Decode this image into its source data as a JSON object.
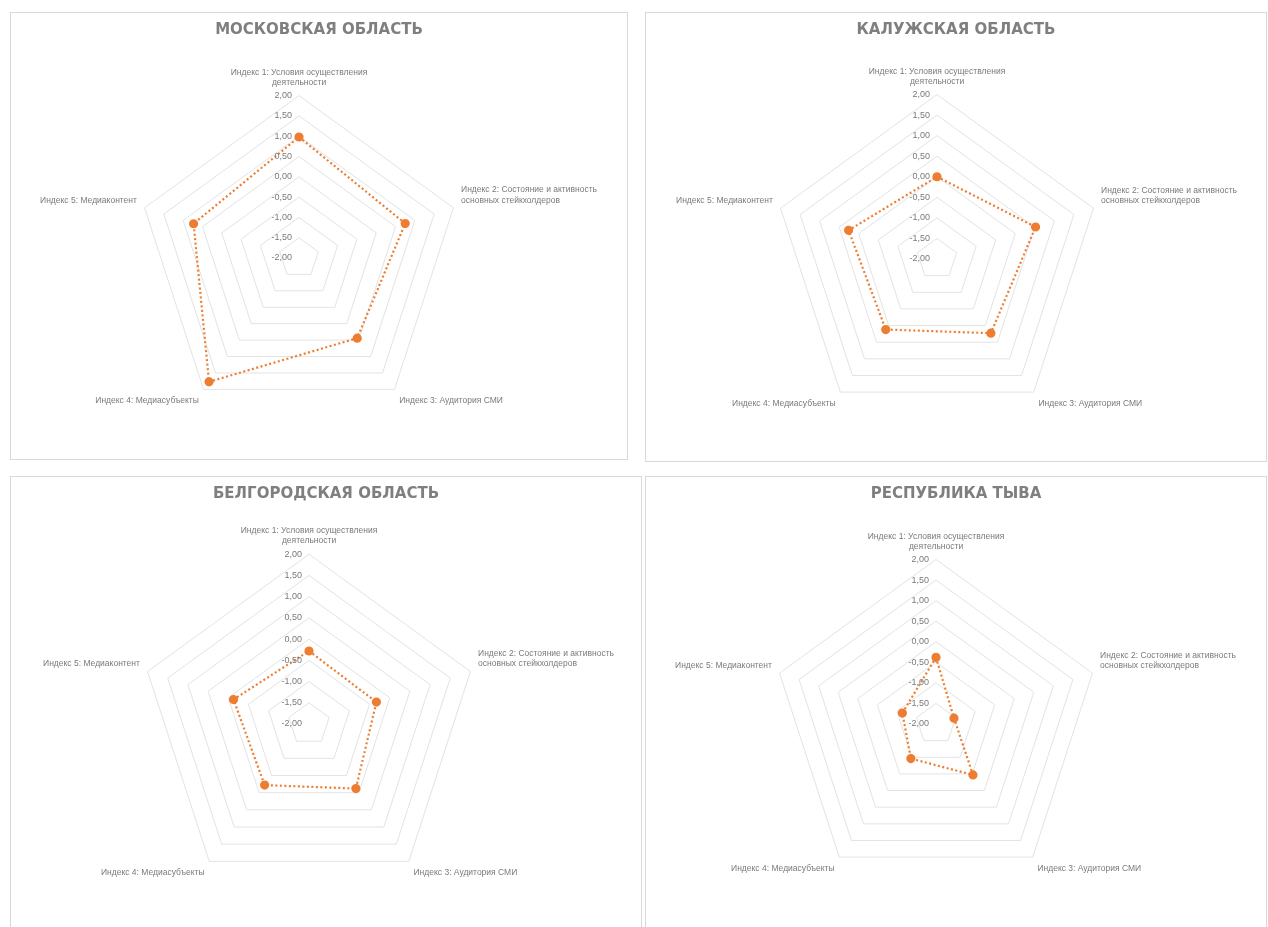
{
  "chart_data": [
    {
      "type": "radar",
      "title": "МОСКОВСКАЯ ОБЛАСТЬ",
      "categories": [
        "Индекс 1: Условия осуществления деятельности",
        "Индекс 2: Состояние и активность основных стейкхолдеров",
        "Индекс 3: Аудитория СМИ",
        "Индекс 4: Медиасубъекты",
        "Индекс 5: Медиаконтент"
      ],
      "series": [
        {
          "color": "#ed7d31",
          "values": [
            0.98,
            0.75,
            0.44,
            1.77,
            0.73
          ]
        }
      ],
      "ylim": [
        -2,
        2
      ],
      "yticks": [
        {
          "value": -2,
          "label": "-2,00"
        },
        {
          "value": -1.5,
          "label": "-1,50"
        },
        {
          "value": -1,
          "label": "-1,00"
        },
        {
          "value": -0.5,
          "label": "-0,50"
        },
        {
          "value": 0,
          "label": "0,00"
        },
        {
          "value": 0.5,
          "label": "0,50"
        },
        {
          "value": 1,
          "label": "1,00"
        },
        {
          "value": 1.5,
          "label": "1,50"
        },
        {
          "value": 2,
          "label": "2,00"
        }
      ],
      "grid": true,
      "legend": false,
      "marker": "circle",
      "line_style": "dotted"
    },
    {
      "type": "radar",
      "title": "КАЛУЖСКАЯ ОБЛАСТЬ",
      "categories": [
        "Индекс 1: Условия осуществления деятельности",
        "Индекс 2: Состояние и активность основных стейкхолдеров",
        "Индекс 3: Аудитория СМИ",
        "Индекс 4: Медиасубъекты",
        "Индекс 5: Медиаконтент"
      ],
      "series": [
        {
          "color": "#ed7d31",
          "values": [
            0.0,
            0.52,
            0.23,
            0.12,
            0.26
          ]
        }
      ],
      "ylim": [
        -2,
        2
      ],
      "yticks": [
        {
          "value": -2,
          "label": "-2,00"
        },
        {
          "value": -1.5,
          "label": "-1,50"
        },
        {
          "value": -1,
          "label": "-1,00"
        },
        {
          "value": -0.5,
          "label": "-0,50"
        },
        {
          "value": 0,
          "label": "0,00"
        },
        {
          "value": 0.5,
          "label": "0,50"
        },
        {
          "value": 1,
          "label": "1,00"
        },
        {
          "value": 1.5,
          "label": "1,50"
        },
        {
          "value": 2,
          "label": "2,00"
        }
      ],
      "grid": true,
      "legend": false,
      "marker": "circle",
      "line_style": "dotted"
    },
    {
      "type": "radar",
      "title": "БЕЛГОРОДСКАЯ ОБЛАСТЬ",
      "categories": [
        "Индекс 1: Условия осуществления деятельности",
        "Индекс 2: Состояние и активность основных стейкхолдеров",
        "Индекс 3: Аудитория СМИ",
        "Индекс 4: Медиасубъекты",
        "Индекс 5: Медиаконтент"
      ],
      "series": [
        {
          "color": "#ed7d31",
          "values": [
            -0.28,
            -0.33,
            -0.12,
            -0.22,
            -0.13
          ]
        }
      ],
      "ylim": [
        -2,
        2
      ],
      "yticks": [
        {
          "value": -2,
          "label": "-2,00"
        },
        {
          "value": -1.5,
          "label": "-1,50"
        },
        {
          "value": -1,
          "label": "-1,00"
        },
        {
          "value": -0.5,
          "label": "-0,50"
        },
        {
          "value": 0,
          "label": "0,00"
        },
        {
          "value": 0.5,
          "label": "0,50"
        },
        {
          "value": 1,
          "label": "1,00"
        },
        {
          "value": 1.5,
          "label": "1,50"
        },
        {
          "value": 2,
          "label": "2,00"
        }
      ],
      "grid": true,
      "legend": false,
      "marker": "circle",
      "line_style": "dotted"
    },
    {
      "type": "radar",
      "title": "РЕСПУБЛИКА ТЫВА",
      "categories": [
        "Индекс 1: Условия осуществления деятельности",
        "Индекс 2: Состояние и активность основных стейкхолдеров",
        "Индекс 3: Аудитория СМИ",
        "Индекс 4: Медиасубъекты",
        "Индекс 5: Медиаконтент"
      ],
      "series": [
        {
          "color": "#ed7d31",
          "values": [
            -0.38,
            -1.54,
            -0.47,
            -0.96,
            -1.14
          ]
        }
      ],
      "ylim": [
        -2,
        2
      ],
      "yticks": [
        {
          "value": -2,
          "label": "-2,00"
        },
        {
          "value": -1.5,
          "label": "-1,50"
        },
        {
          "value": -1,
          "label": "-1,00"
        },
        {
          "value": -0.5,
          "label": "-0,50"
        },
        {
          "value": 0,
          "label": "0,00"
        },
        {
          "value": 0.5,
          "label": "0,50"
        },
        {
          "value": 1,
          "label": "1,00"
        },
        {
          "value": 1.5,
          "label": "1,50"
        },
        {
          "value": 2,
          "label": "2,00"
        }
      ],
      "grid": true,
      "legend": false,
      "marker": "circle",
      "line_style": "dotted"
    }
  ]
}
